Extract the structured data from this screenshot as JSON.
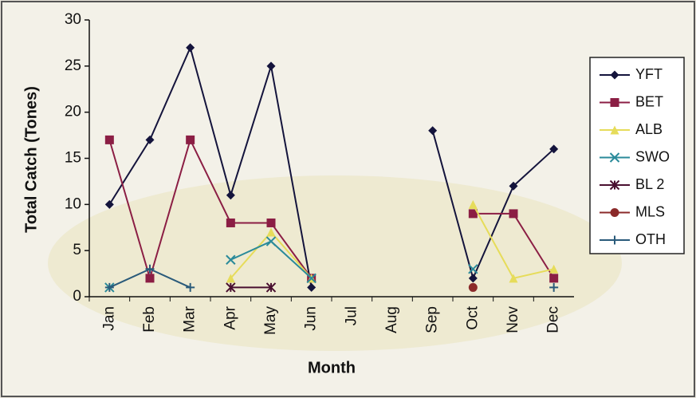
{
  "chart_data": {
    "type": "line",
    "x_label": "Month",
    "y_label": "Total Catch (Tones)",
    "categories": [
      "Jan",
      "Feb",
      "Mar",
      "Apr",
      "May",
      "Jun",
      "Jul",
      "Aug",
      "Sep",
      "Oct",
      "Nov",
      "Dec"
    ],
    "ylim": [
      0,
      30
    ],
    "yticks": [
      0,
      5,
      10,
      15,
      20,
      25,
      30
    ],
    "series": [
      {
        "name": "YFT",
        "color": "#14143c",
        "marker": "diamond",
        "values": [
          10,
          17,
          27,
          11,
          25,
          1,
          null,
          null,
          18,
          2,
          12,
          16
        ]
      },
      {
        "name": "BET",
        "color": "#8b1e44",
        "marker": "square",
        "values": [
          17,
          2,
          17,
          8,
          8,
          2,
          null,
          null,
          null,
          9,
          9,
          2
        ]
      },
      {
        "name": "ALB",
        "color": "#e6dc5a",
        "marker": "triangle",
        "values": [
          null,
          null,
          null,
          2,
          7,
          2,
          null,
          null,
          null,
          10,
          2,
          3
        ]
      },
      {
        "name": "SWO",
        "color": "#2a8a9a",
        "marker": "x",
        "values": [
          1,
          null,
          null,
          4,
          6,
          2,
          null,
          null,
          null,
          3,
          null,
          null
        ]
      },
      {
        "name": "BL 2",
        "color": "#4a1030",
        "marker": "star",
        "values": [
          null,
          null,
          null,
          1,
          1,
          null,
          null,
          null,
          null,
          null,
          null,
          null
        ]
      },
      {
        "name": "MLS",
        "color": "#8b2a2a",
        "marker": "circle",
        "values": [
          null,
          null,
          null,
          null,
          null,
          null,
          null,
          null,
          null,
          1,
          null,
          null
        ]
      },
      {
        "name": "OTH",
        "color": "#2a5a7a",
        "marker": "plus",
        "values": [
          1,
          3,
          1,
          null,
          null,
          null,
          null,
          null,
          null,
          null,
          null,
          1
        ]
      }
    ]
  }
}
